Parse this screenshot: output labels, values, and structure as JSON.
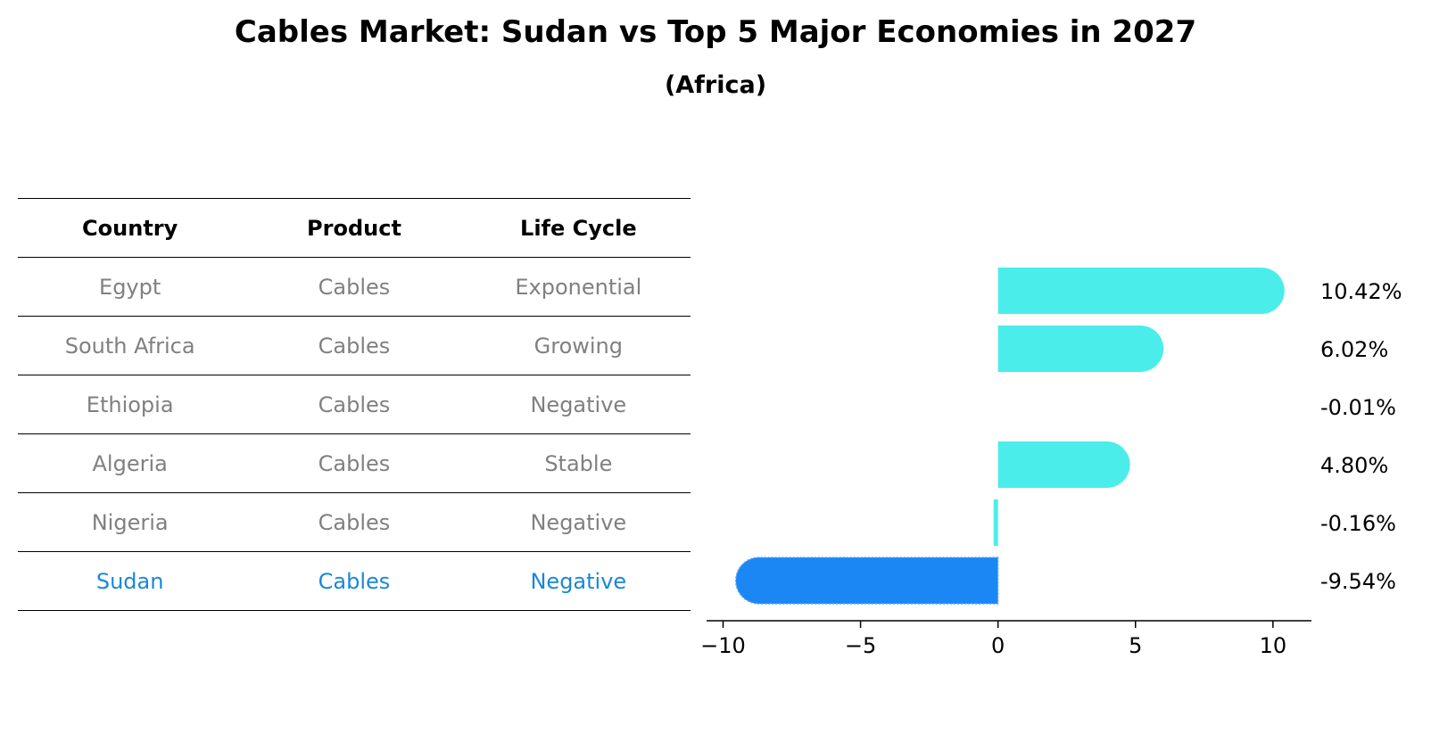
{
  "title": "Cables Market: Sudan vs Top 5 Major Economies in 2027",
  "subtitle": "(Africa)",
  "table": {
    "headers": [
      "Country",
      "Product",
      "Life Cycle"
    ],
    "rows": [
      [
        "Egypt",
        "Cables",
        "Exponential"
      ],
      [
        "South Africa",
        "Cables",
        "Growing"
      ],
      [
        "Ethiopia",
        "Cables",
        "Negative"
      ],
      [
        "Algeria",
        "Cables",
        "Stable"
      ],
      [
        "Nigeria",
        "Cables",
        "Negative"
      ],
      [
        "Sudan",
        "Cables",
        "Negative"
      ]
    ],
    "highlight_row": 5
  },
  "colors": {
    "bar": "#4aedea",
    "highlight_bar": "#1a87f5",
    "highlight_text": "#1a87d8",
    "muted_text": "#808080"
  },
  "chart_data": {
    "type": "bar",
    "orientation": "horizontal",
    "categories": [
      "Egypt",
      "South Africa",
      "Ethiopia",
      "Algeria",
      "Nigeria",
      "Sudan"
    ],
    "values": [
      10.42,
      6.02,
      -0.01,
      4.8,
      -0.16,
      -9.54
    ],
    "value_labels": [
      "10.42%",
      "6.02%",
      "-0.01%",
      "4.80%",
      "-0.16%",
      "-9.54%"
    ],
    "highlight_index": 5,
    "xlim": [
      -10.6,
      11.4
    ],
    "xticks": [
      -10,
      -5,
      0,
      5,
      10
    ],
    "xtick_labels": [
      "−10",
      "−5",
      "0",
      "5",
      "10"
    ],
    "grid": false
  }
}
